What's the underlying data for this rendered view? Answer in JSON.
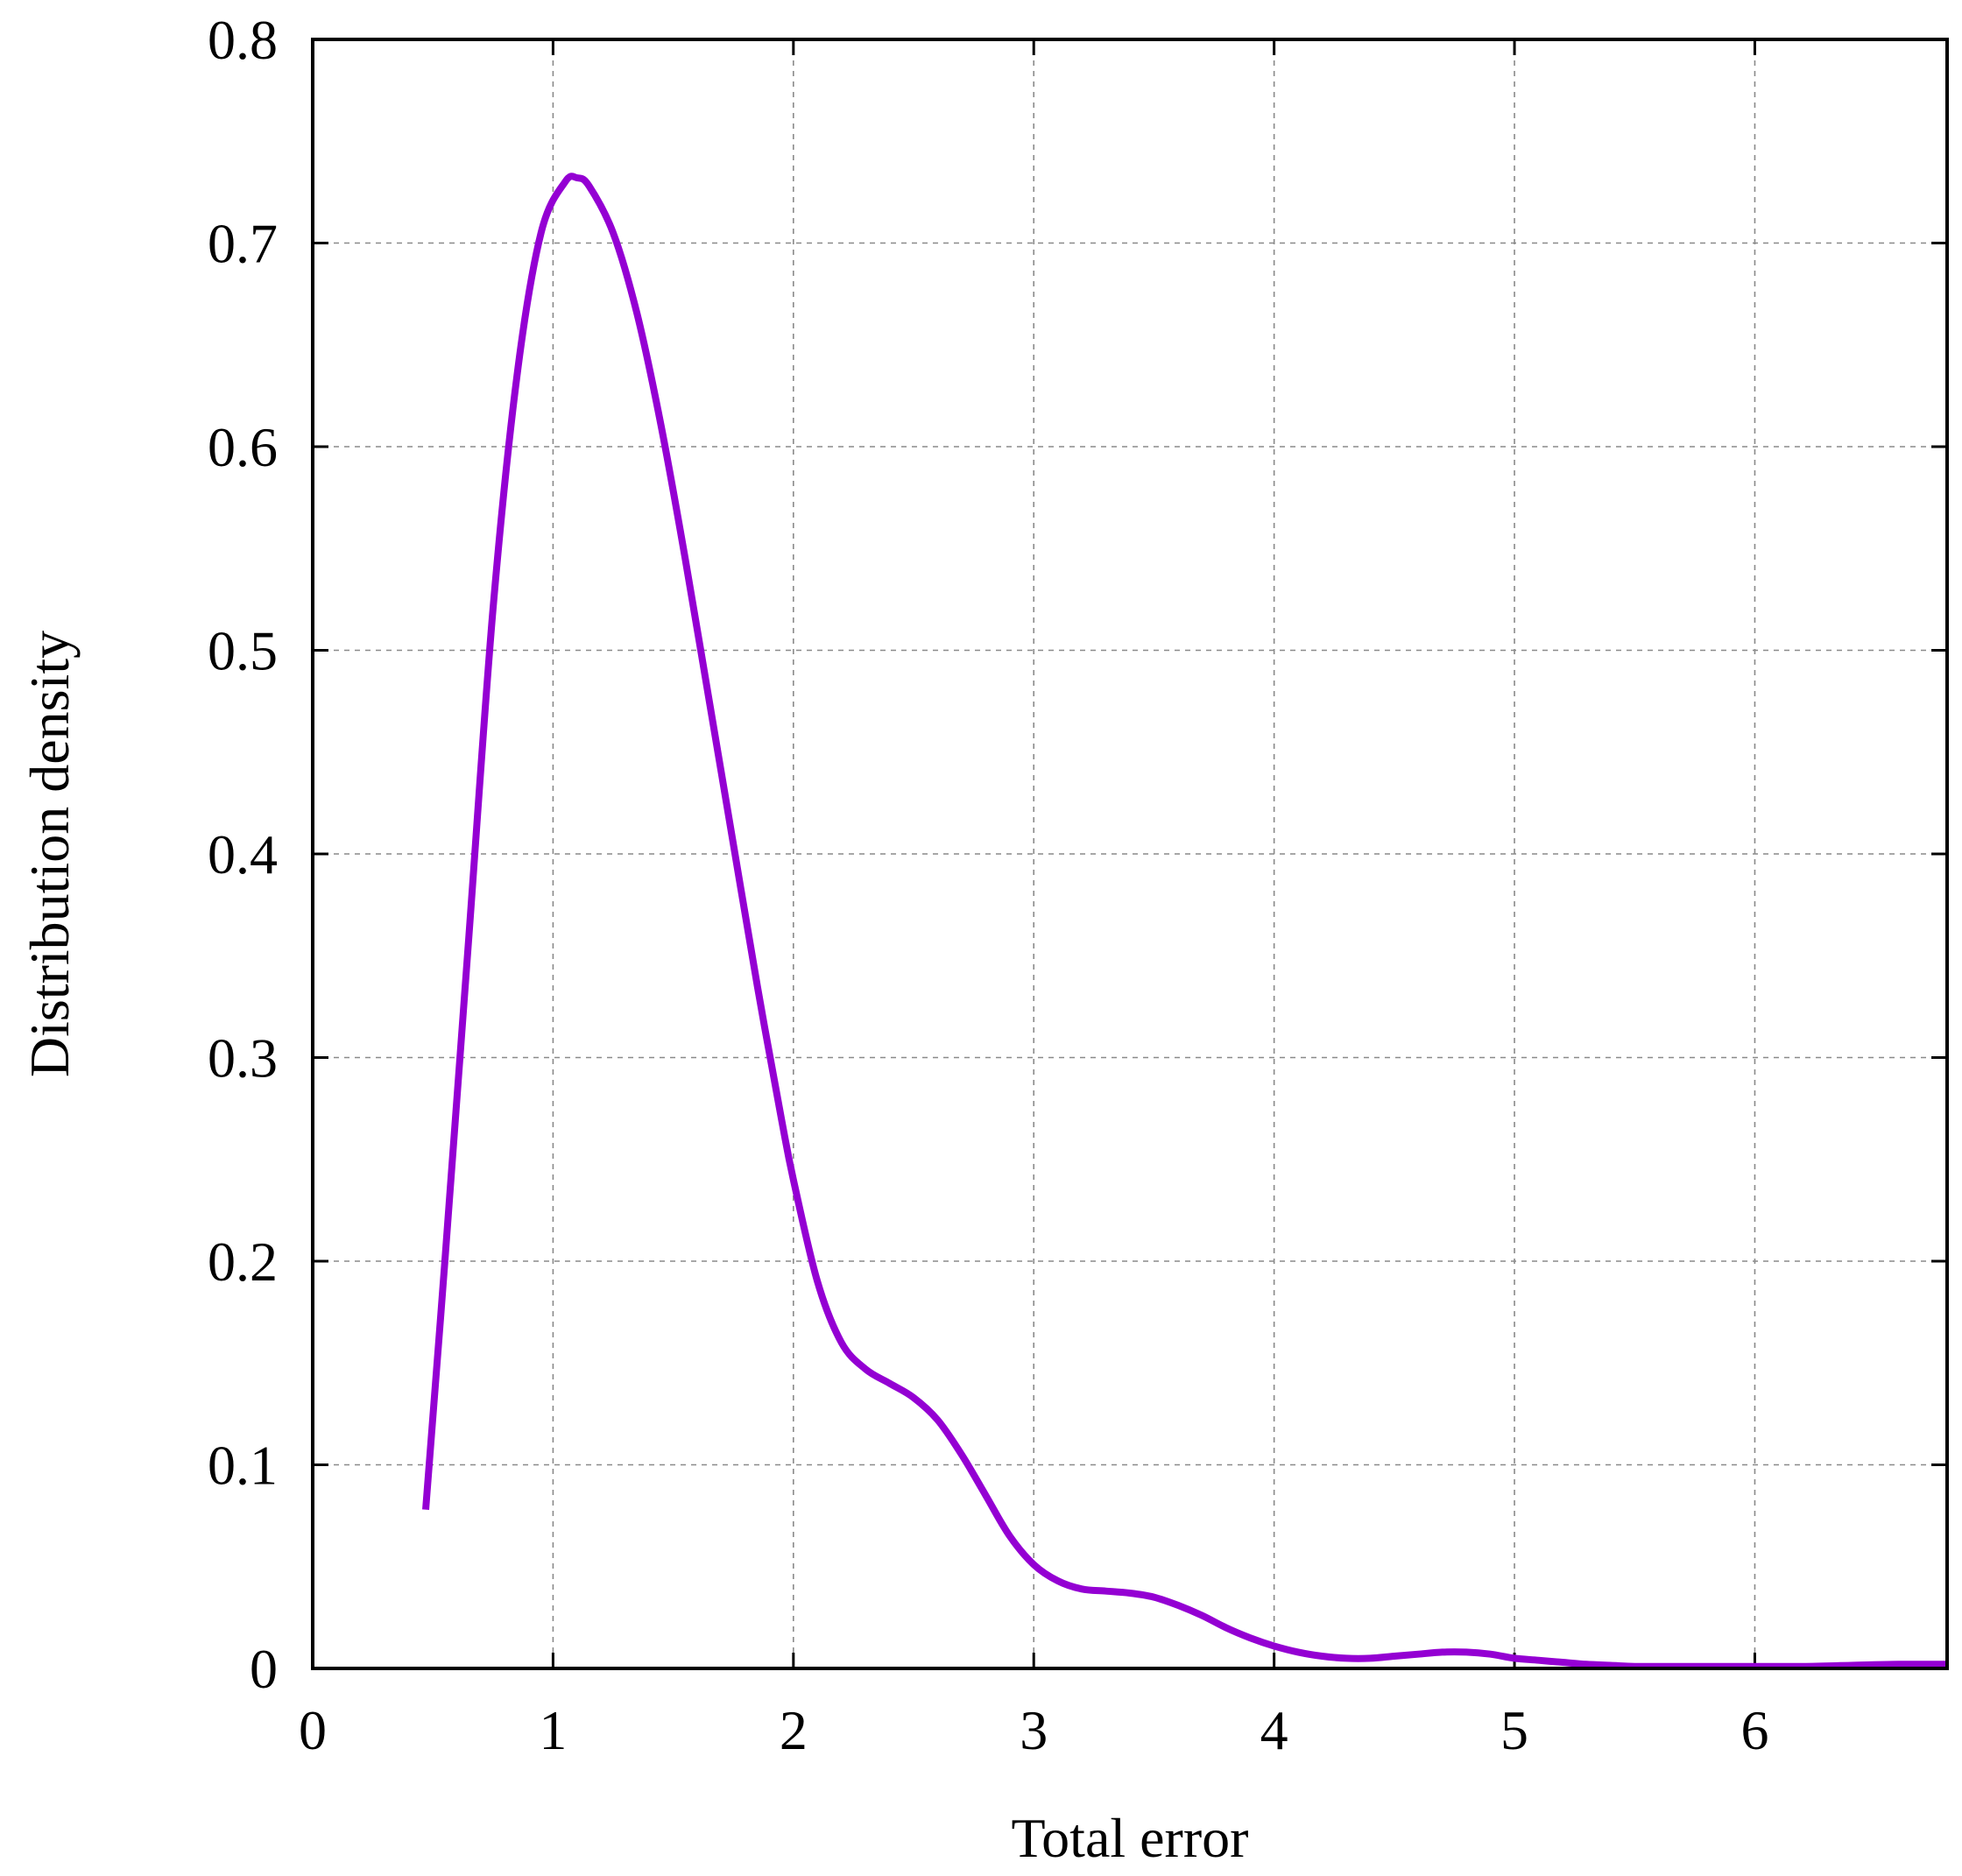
{
  "chart_data": {
    "type": "line",
    "title": "",
    "xlabel": "Total error",
    "ylabel": "Distribution density",
    "xlim": [
      0,
      6.8
    ],
    "ylim": [
      0,
      0.8
    ],
    "x_ticks": [
      0,
      1,
      2,
      3,
      4,
      5,
      6
    ],
    "x_tick_labels": [
      "0",
      "1",
      "2",
      "3",
      "4",
      "5",
      "6"
    ],
    "y_ticks": [
      0,
      0.1,
      0.2,
      0.3,
      0.4,
      0.5,
      0.6,
      0.7,
      0.8
    ],
    "y_tick_labels": [
      "0",
      "0.1",
      "0.2",
      "0.3",
      "0.4",
      "0.5",
      "0.6",
      "0.7",
      "0.8"
    ],
    "grid": true,
    "series": [
      {
        "color": "#9400d3",
        "x": [
          0.47,
          0.55,
          0.65,
          0.75,
          0.85,
          0.95,
          1.05,
          1.1,
          1.15,
          1.25,
          1.35,
          1.45,
          1.55,
          1.65,
          1.75,
          1.85,
          1.95,
          2.0,
          2.1,
          2.2,
          2.3,
          2.4,
          2.5,
          2.6,
          2.7,
          2.8,
          2.9,
          3.0,
          3.1,
          3.2,
          3.3,
          3.4,
          3.5,
          3.6,
          3.7,
          3.8,
          3.9,
          4.0,
          4.1,
          4.2,
          4.3,
          4.4,
          4.5,
          4.6,
          4.7,
          4.8,
          4.9,
          5.0,
          5.1,
          5.2,
          5.3,
          5.4,
          5.5,
          5.6,
          5.8,
          6.0,
          6.2,
          6.4,
          6.6,
          6.8
        ],
        "y": [
          0.078,
          0.2,
          0.36,
          0.52,
          0.635,
          0.705,
          0.73,
          0.732,
          0.728,
          0.705,
          0.665,
          0.61,
          0.545,
          0.475,
          0.405,
          0.335,
          0.27,
          0.24,
          0.19,
          0.16,
          0.147,
          0.14,
          0.133,
          0.122,
          0.105,
          0.085,
          0.065,
          0.051,
          0.043,
          0.039,
          0.038,
          0.037,
          0.035,
          0.031,
          0.026,
          0.02,
          0.015,
          0.011,
          0.008,
          0.006,
          0.005,
          0.005,
          0.006,
          0.007,
          0.008,
          0.008,
          0.007,
          0.005,
          0.004,
          0.003,
          0.002,
          0.0015,
          0.001,
          0.001,
          0.001,
          0.001,
          0.001,
          0.0015,
          0.002,
          0.002
        ]
      }
    ]
  }
}
